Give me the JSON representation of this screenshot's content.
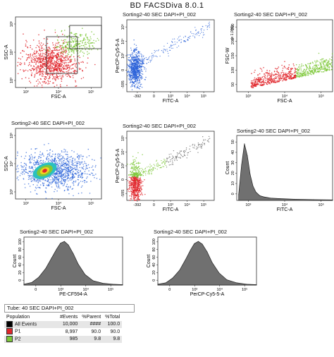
{
  "app_title": "BD FACSDiva 8.0.1",
  "colors": {
    "red": "#e0262b",
    "green": "#7ec83a",
    "blue": "#2a62d8",
    "hist": "#707070"
  },
  "chart_data": [
    {
      "id": "p1",
      "type": "scatter",
      "title": "",
      "xlabel": "FSC-A",
      "ylabel": "SSC-A",
      "xticks": [
        "10³",
        "10⁴",
        "10⁵"
      ],
      "yticks": [
        "10³",
        "10⁴",
        "10⁵"
      ],
      "gates": [
        "P1",
        "P2"
      ],
      "grid": false
    },
    {
      "id": "p2",
      "type": "scatter",
      "title": "Sorting2-40 SEC DAPI+PI_002",
      "xlabel": "FITC-A",
      "ylabel": "PerCP-Cy5-5-A",
      "xticks": [
        "-392",
        "0",
        "10³",
        "10⁴",
        "10⁵"
      ],
      "yticks": [
        "-595",
        "0",
        "10³",
        "10⁴",
        "10⁵"
      ],
      "grid": false
    },
    {
      "id": "p3",
      "type": "scatter",
      "title": "Sorting2-40 SEC DAPI+PI_002",
      "xlabel": "FSC-A",
      "ylabel": "FSC-W",
      "yunit": "(x 1,000)",
      "xticks": [
        "10³",
        "10⁴",
        "10⁵"
      ],
      "yticks": [
        "50",
        "100",
        "150",
        "200",
        "250"
      ],
      "grid": false
    },
    {
      "id": "p4",
      "type": "scatter",
      "title": "Sorting2-40 SEC DAPI+PI_002",
      "xlabel": "FSC-A",
      "ylabel": "SSC-A",
      "xticks": [
        "10³",
        "10⁴",
        "10⁵"
      ],
      "yticks": [
        "10³",
        "10⁴",
        "10⁵"
      ],
      "grid": false
    },
    {
      "id": "p5",
      "type": "scatter",
      "title": "Sorting2-40 SEC DAPI+PI_002",
      "xlabel": "FITC-A",
      "ylabel": "PerCP-Cy5-5-A",
      "xticks": [
        "-392",
        "0",
        "10³",
        "10⁴",
        "10⁵"
      ],
      "yticks": [
        "-595",
        "0",
        "10³",
        "10⁴",
        "10⁵"
      ],
      "grid": false
    },
    {
      "id": "p6",
      "type": "area",
      "title": "Sorting2-40 SEC DAPI+PI_002",
      "xlabel": "FITC-A",
      "ylabel": "Count",
      "xticks": [
        "10³",
        "10⁴",
        "10⁵"
      ],
      "yticks": [
        "0",
        "10",
        "20",
        "30",
        "40",
        "50"
      ],
      "ylim": [
        0,
        55
      ],
      "x": [
        0.02,
        0.05,
        0.08,
        0.11,
        0.14,
        0.17,
        0.2,
        0.24,
        0.28,
        0.35,
        0.45,
        0.6,
        0.8,
        1.0
      ],
      "y": [
        5,
        30,
        48,
        38,
        22,
        12,
        7,
        4,
        3,
        2,
        1.5,
        1,
        0.6,
        0.4
      ]
    },
    {
      "id": "p7",
      "type": "area",
      "title": "Sorting2-40 SEC DAPI+PI_002",
      "xlabel": "PE-CF594-A",
      "ylabel": "Count",
      "xticks": [
        "0",
        "10³",
        "10⁴",
        "10⁵"
      ],
      "yticks": [
        "0",
        "20",
        "40",
        "60",
        "80",
        "100"
      ],
      "ylim": [
        0,
        110
      ],
      "x": [
        0.0,
        0.08,
        0.15,
        0.22,
        0.28,
        0.33,
        0.37,
        0.41,
        0.45,
        0.5,
        0.55,
        0.62,
        0.7,
        0.8,
        0.9,
        1.0
      ],
      "y": [
        2,
        6,
        18,
        38,
        62,
        82,
        96,
        100,
        92,
        72,
        48,
        24,
        10,
        4,
        2,
        1
      ]
    },
    {
      "id": "p8",
      "type": "area",
      "title": "Sorting2-40 SEC DAPI+PI_002",
      "xlabel": "PerCP-Cy5-5-A",
      "ylabel": "Count",
      "xticks": [
        "0",
        "10³",
        "10⁴",
        "10⁵"
      ],
      "yticks": [
        "0",
        "20",
        "40",
        "60",
        "80",
        "100"
      ],
      "ylim": [
        0,
        110
      ],
      "x": [
        0.0,
        0.08,
        0.15,
        0.22,
        0.28,
        0.33,
        0.37,
        0.41,
        0.45,
        0.5,
        0.55,
        0.62,
        0.7,
        0.8,
        0.9,
        1.0
      ],
      "y": [
        2,
        5,
        16,
        34,
        58,
        80,
        95,
        100,
        94,
        76,
        52,
        28,
        12,
        5,
        2,
        1
      ]
    }
  ],
  "stats": {
    "tube_label": "Tube:",
    "tube_value": "40 SEC DAPI+PI_002",
    "headers": [
      "Population",
      "#Events",
      "%Parent",
      "%Total"
    ],
    "rows": [
      {
        "name": "All Events",
        "events": "10,000",
        "parent": "####",
        "total": "100.0",
        "color": "#000000"
      },
      {
        "name": "P1",
        "events": "8,997",
        "parent": "90.0",
        "total": "90.0",
        "color": "#e0262b"
      },
      {
        "name": "P2",
        "events": "985",
        "parent": "9.8",
        "total": "9.8",
        "color": "#7ec83a"
      }
    ]
  }
}
